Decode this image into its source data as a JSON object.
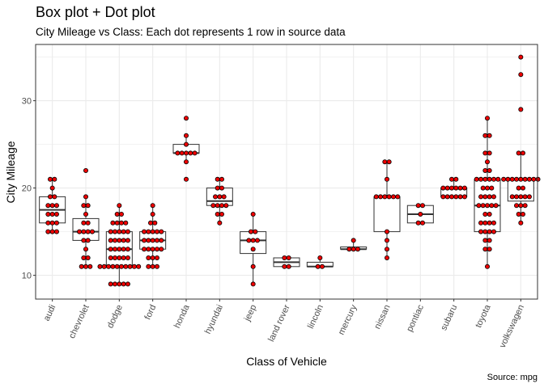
{
  "chart_data": {
    "type": "box+dot",
    "title": "Box plot + Dot plot",
    "subtitle": "City Mileage vs Class: Each dot represents 1 row in source data",
    "caption": "Source: mpg",
    "xlabel": "Class of Vehicle",
    "ylabel": "City Mileage",
    "ylim": [
      8,
      36
    ],
    "yticks": [
      10,
      20,
      30
    ],
    "grid": true,
    "colors": {
      "dot_fill": "#ee0000",
      "dot_stroke": "#000000",
      "box_stroke": "#333333",
      "grid": "#ebebeb",
      "panel_border": "#333333"
    },
    "categories": [
      "audi",
      "chevrolet",
      "dodge",
      "ford",
      "honda",
      "hyundai",
      "jeep",
      "land rover",
      "lincoln",
      "mercury",
      "nissan",
      "pontiac",
      "subaru",
      "toyota",
      "volkswagen"
    ],
    "boxes": [
      {
        "category": "audi",
        "q1": 16,
        "median": 17.5,
        "q3": 19,
        "whisker_low": 15,
        "whisker_high": 21
      },
      {
        "category": "chevrolet",
        "q1": 14,
        "median": 15,
        "q3": 16.5,
        "whisker_low": 11,
        "whisker_high": 19
      },
      {
        "category": "dodge",
        "q1": 11,
        "median": 13,
        "q3": 15,
        "whisker_low": 9,
        "whisker_high": 18
      },
      {
        "category": "ford",
        "q1": 13,
        "median": 14,
        "q3": 15,
        "whisker_low": 11,
        "whisker_high": 18
      },
      {
        "category": "honda",
        "q1": 24,
        "median": 24,
        "q3": 25,
        "whisker_low": 23,
        "whisker_high": 26
      },
      {
        "category": "hyundai",
        "q1": 18,
        "median": 18.5,
        "q3": 20,
        "whisker_low": 16,
        "whisker_high": 21
      },
      {
        "category": "jeep",
        "q1": 12.5,
        "median": 14,
        "q3": 15,
        "whisker_low": 9,
        "whisker_high": 17
      },
      {
        "category": "land rover",
        "q1": 11,
        "median": 11.5,
        "q3": 12,
        "whisker_low": 11,
        "whisker_high": 12
      },
      {
        "category": "lincoln",
        "q1": 11,
        "median": 11,
        "q3": 11.5,
        "whisker_low": 11,
        "whisker_high": 12
      },
      {
        "category": "mercury",
        "q1": 13,
        "median": 13,
        "q3": 13.25,
        "whisker_low": 13,
        "whisker_high": 14
      },
      {
        "category": "nissan",
        "q1": 15,
        "median": 19,
        "q3": 19,
        "whisker_low": 12,
        "whisker_high": 23
      },
      {
        "category": "pontiac",
        "q1": 16,
        "median": 17,
        "q3": 18,
        "whisker_low": 16,
        "whisker_high": 18
      },
      {
        "category": "subaru",
        "q1": 19,
        "median": 19,
        "q3": 20,
        "whisker_low": 19,
        "whisker_high": 21
      },
      {
        "category": "toyota",
        "q1": 15,
        "median": 18,
        "q3": 21,
        "whisker_low": 11,
        "whisker_high": 28
      },
      {
        "category": "volkswagen",
        "q1": 18.5,
        "median": 21,
        "q3": 21,
        "whisker_low": 16,
        "whisker_high": 24
      }
    ],
    "outliers": [
      {
        "category": "chevrolet",
        "value": 22
      },
      {
        "category": "honda",
        "value": 21
      },
      {
        "category": "honda",
        "value": 28
      },
      {
        "category": "volkswagen",
        "value": 29
      },
      {
        "category": "volkswagen",
        "value": 33
      },
      {
        "category": "volkswagen",
        "value": 35
      }
    ],
    "series": [
      {
        "category": "audi",
        "values": [
          15,
          15,
          15,
          16,
          16,
          16,
          17,
          17,
          17,
          18,
          18,
          18,
          19,
          19,
          20,
          21,
          21
        ]
      },
      {
        "category": "chevrolet",
        "values": [
          11,
          11,
          11,
          12,
          12,
          13,
          14,
          14,
          15,
          15,
          15,
          15,
          16,
          16,
          17,
          18,
          18,
          19,
          22
        ]
      },
      {
        "category": "dodge",
        "values": [
          9,
          9,
          9,
          9,
          9,
          11,
          11,
          11,
          11,
          11,
          11,
          11,
          11,
          11,
          11,
          12,
          12,
          12,
          12,
          12,
          13,
          13,
          13,
          13,
          13,
          14,
          14,
          14,
          14,
          14,
          15,
          15,
          15,
          15,
          15,
          16,
          16,
          16,
          16,
          17,
          17,
          18
        ]
      },
      {
        "category": "ford",
        "values": [
          11,
          11,
          11,
          12,
          12,
          12,
          13,
          13,
          13,
          13,
          13,
          14,
          14,
          14,
          14,
          14,
          15,
          15,
          15,
          15,
          15,
          16,
          16,
          17,
          18
        ]
      },
      {
        "category": "honda",
        "values": [
          21,
          23,
          24,
          24,
          24,
          24,
          24,
          25,
          26,
          28
        ]
      },
      {
        "category": "hyundai",
        "values": [
          16,
          17,
          17,
          18,
          18,
          18,
          18,
          19,
          19,
          19,
          20,
          20,
          21,
          21
        ]
      },
      {
        "category": "jeep",
        "values": [
          9,
          11,
          13,
          14,
          14,
          14,
          15,
          15,
          17
        ]
      },
      {
        "category": "land rover",
        "values": [
          11,
          11,
          12,
          12
        ]
      },
      {
        "category": "lincoln",
        "values": [
          11,
          11,
          12
        ]
      },
      {
        "category": "mercury",
        "values": [
          13,
          13,
          13,
          14
        ]
      },
      {
        "category": "nissan",
        "values": [
          12,
          13,
          14,
          15,
          19,
          19,
          19,
          19,
          19,
          19,
          21,
          23,
          23
        ]
      },
      {
        "category": "pontiac",
        "values": [
          16,
          16,
          17,
          18,
          18
        ]
      },
      {
        "category": "subaru",
        "values": [
          19,
          19,
          19,
          19,
          19,
          19,
          20,
          20,
          20,
          20,
          20,
          20,
          21,
          21
        ]
      },
      {
        "category": "toyota",
        "values": [
          11,
          13,
          13,
          14,
          14,
          15,
          15,
          15,
          15,
          16,
          16,
          16,
          16,
          17,
          17,
          18,
          18,
          18,
          18,
          18,
          19,
          19,
          19,
          19,
          20,
          20,
          20,
          21,
          21,
          21,
          21,
          21,
          21,
          22,
          22,
          23,
          24,
          24,
          26,
          26,
          28
        ]
      },
      {
        "category": "volkswagen",
        "values": [
          16,
          17,
          17,
          18,
          18,
          18,
          19,
          19,
          19,
          19,
          19,
          20,
          20,
          21,
          21,
          21,
          21,
          21,
          21,
          21,
          21,
          21,
          24,
          24,
          29,
          33,
          35
        ]
      }
    ]
  }
}
